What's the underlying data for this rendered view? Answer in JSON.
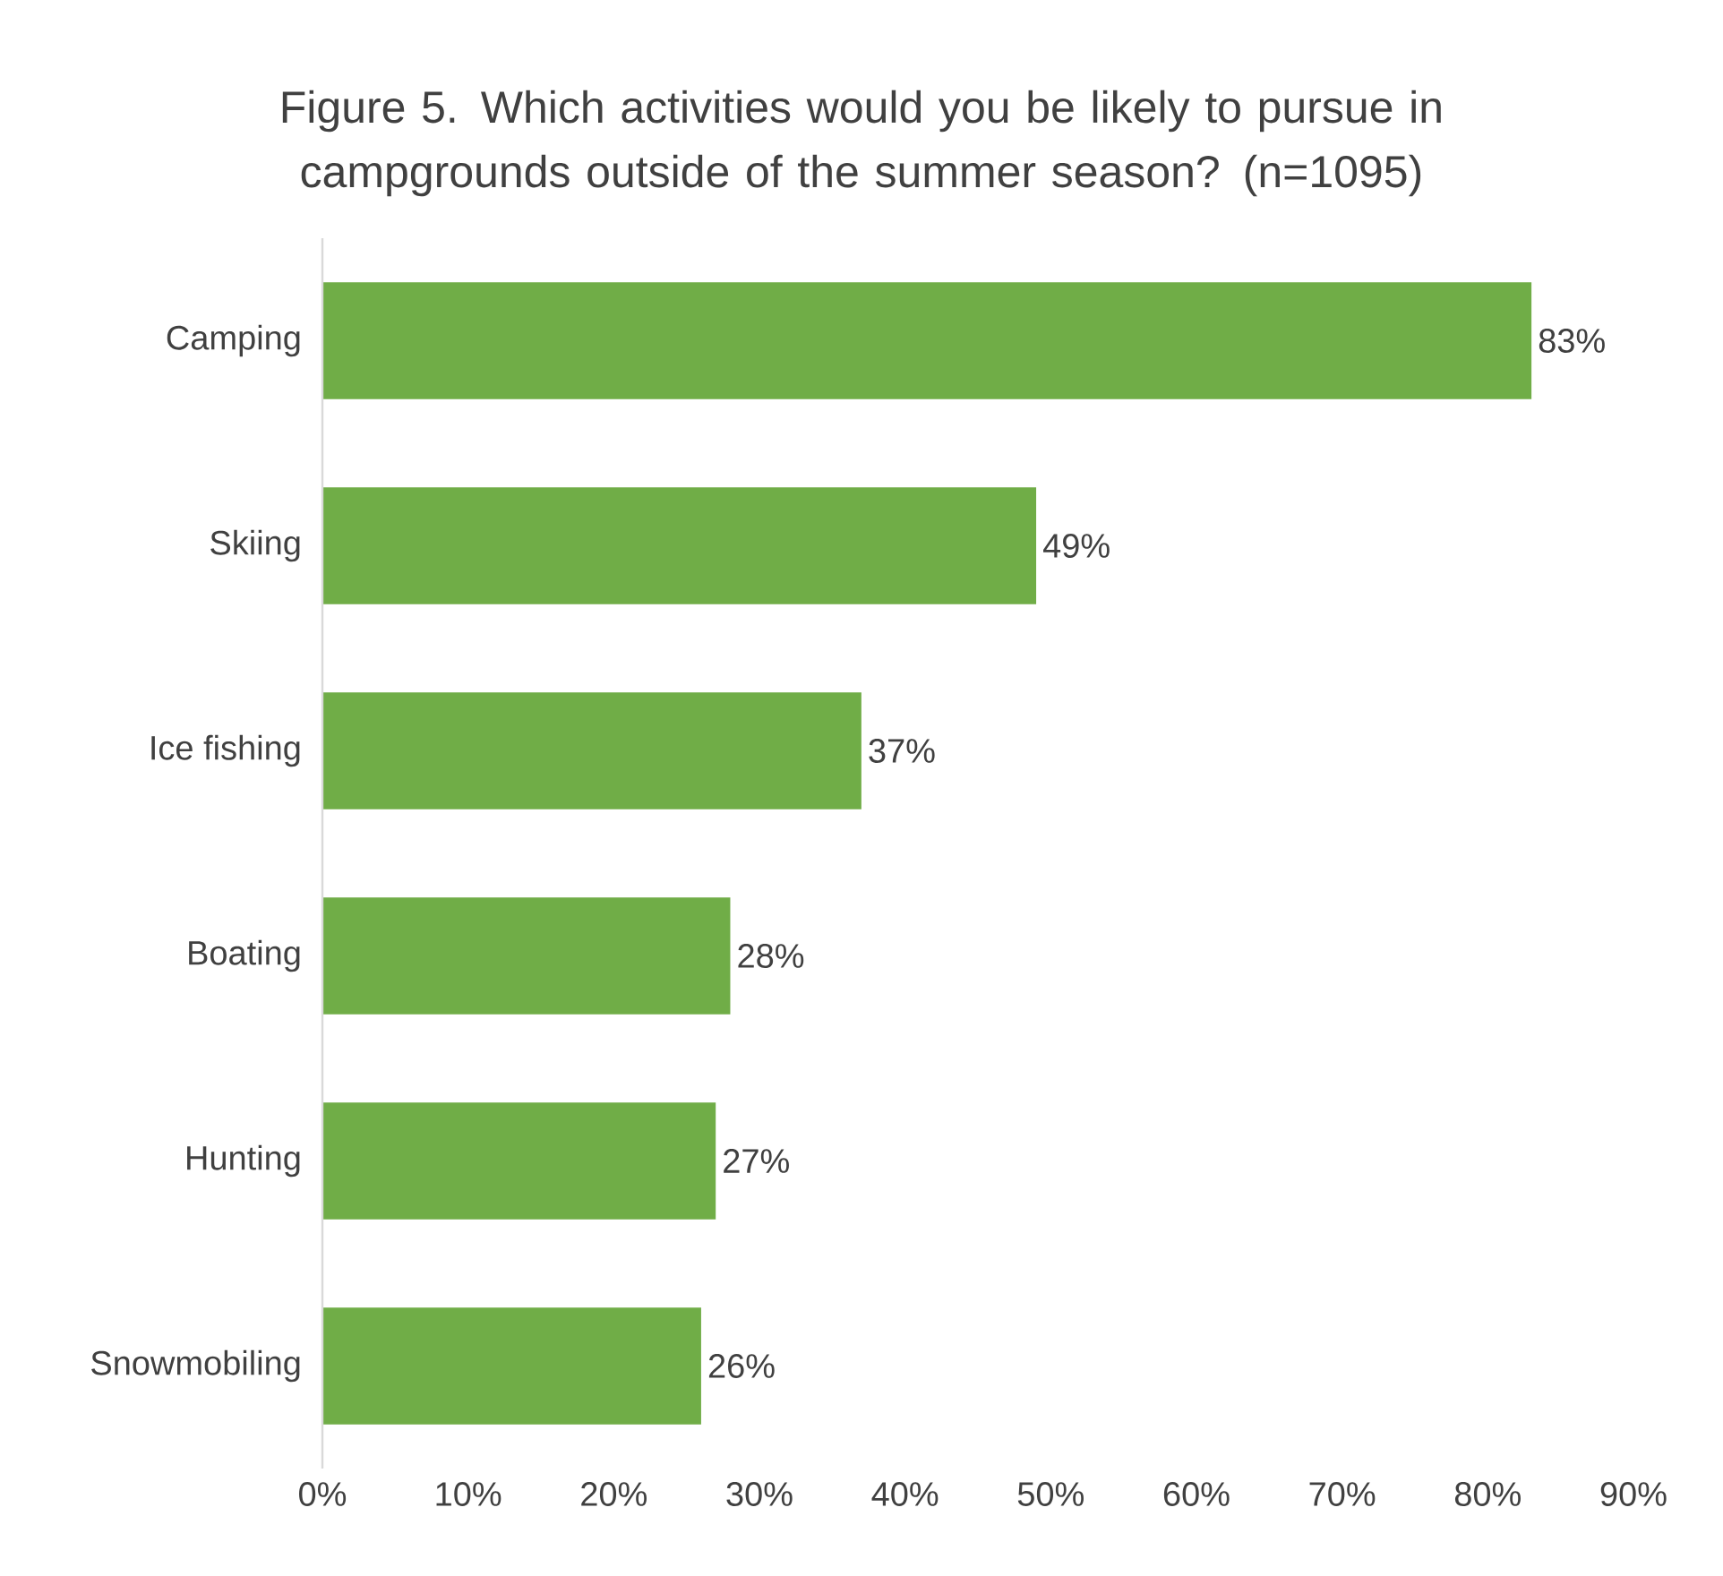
{
  "chart_data": {
    "type": "bar",
    "orientation": "horizontal",
    "title": "Figure 5. Which activities would you be likely to pursue in campgrounds outside of the summer season? (n=1095)",
    "categories": [
      "Camping",
      "Skiing",
      "Ice fishing",
      "Boating",
      "Hunting",
      "Snowmobiling"
    ],
    "values": [
      83,
      49,
      37,
      28,
      27,
      26
    ],
    "value_labels": [
      "83%",
      "49%",
      "37%",
      "28%",
      "27%",
      "26%"
    ],
    "color": "#70ad47",
    "xlim": [
      0,
      90
    ],
    "xticks": [
      {
        "value": 0,
        "label": "0%"
      },
      {
        "value": 10,
        "label": "10%"
      },
      {
        "value": 20,
        "label": "20%"
      },
      {
        "value": 30,
        "label": "30%"
      },
      {
        "value": 40,
        "label": "40%"
      },
      {
        "value": 50,
        "label": "50%"
      },
      {
        "value": 60,
        "label": "60%"
      },
      {
        "value": 70,
        "label": "70%"
      },
      {
        "value": 80,
        "label": "80%"
      },
      {
        "value": 90,
        "label": "90%"
      }
    ]
  }
}
